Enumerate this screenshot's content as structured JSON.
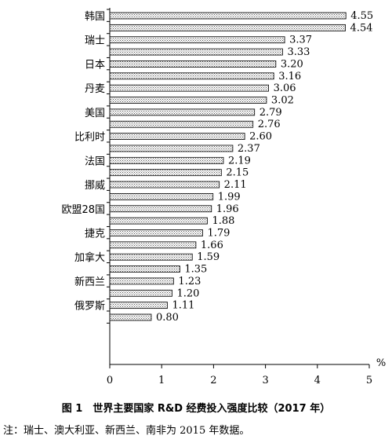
{
  "chart_data": {
    "type": "bar",
    "orientation": "horizontal",
    "categories": [
      "韩国",
      "",
      "瑞士",
      "",
      "日本",
      "",
      "丹麦",
      "",
      "美国",
      "",
      "比利时",
      "",
      "法国",
      "",
      "挪威",
      "",
      "欧盟28国",
      "",
      "捷克",
      "",
      "加拿大",
      "",
      "新西兰",
      "",
      "俄罗斯",
      ""
    ],
    "values": [
      4.55,
      4.54,
      3.37,
      3.33,
      3.2,
      3.16,
      3.06,
      3.02,
      2.79,
      2.76,
      2.6,
      2.37,
      2.19,
      2.15,
      2.11,
      1.99,
      1.96,
      1.88,
      1.79,
      1.66,
      1.59,
      1.35,
      1.23,
      1.2,
      1.11,
      0.8
    ],
    "value_labels": [
      "4.55",
      "4.54",
      "3.37",
      "3.33",
      "3.20",
      "3.16",
      "3.06",
      "3.02",
      "2.79",
      "2.76",
      "2.60",
      "2.37",
      "2.19",
      "2.15",
      "2.11",
      "1.99",
      "1.96",
      "1.88",
      "1.79",
      "1.66",
      "1.59",
      "1.35",
      "1.23",
      "1.20",
      "1.11",
      "0.80"
    ],
    "xlim": [
      0,
      5
    ],
    "xticks": [
      "0",
      "1",
      "2",
      "3",
      "4",
      "5"
    ],
    "unit_label": "%",
    "title": "图 1　世界主要国家 R&D 经费投入强度比较（2017 年）",
    "grid": false,
    "bar_fill": "dotted-pattern"
  },
  "note": "注：瑞士、澳大利亚、新西兰、南非为 2015 年数据。"
}
